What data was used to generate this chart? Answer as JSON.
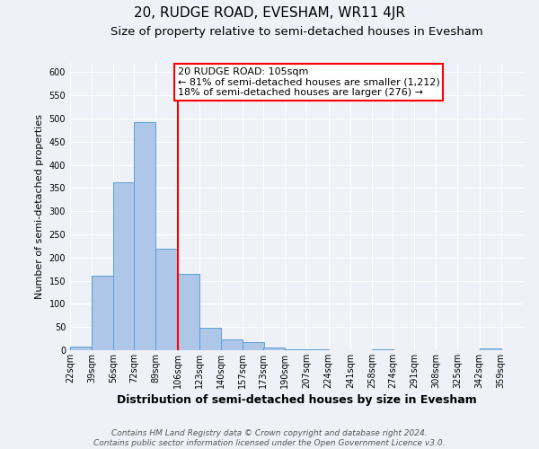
{
  "title": "20, RUDGE ROAD, EVESHAM, WR11 4JR",
  "subtitle": "Size of property relative to semi-detached houses in Evesham",
  "xlabel": "Distribution of semi-detached houses by size in Evesham",
  "ylabel": "Number of semi-detached properties",
  "bin_labels": [
    "22sqm",
    "39sqm",
    "56sqm",
    "72sqm",
    "89sqm",
    "106sqm",
    "123sqm",
    "140sqm",
    "157sqm",
    "173sqm",
    "190sqm",
    "207sqm",
    "224sqm",
    "241sqm",
    "258sqm",
    "274sqm",
    "291sqm",
    "308sqm",
    "325sqm",
    "342sqm",
    "359sqm"
  ],
  "bin_edges": [
    22,
    39,
    56,
    72,
    89,
    106,
    123,
    140,
    157,
    173,
    190,
    207,
    224,
    241,
    258,
    274,
    291,
    308,
    325,
    342,
    359
  ],
  "bar_heights": [
    8,
    161,
    362,
    492,
    218,
    164,
    49,
    24,
    18,
    6,
    2,
    1,
    0,
    0,
    2,
    0,
    0,
    0,
    0,
    3
  ],
  "bar_color": "#aec6e8",
  "bar_edgecolor": "#5a9fd4",
  "vline_x": 106,
  "vline_color": "red",
  "annotation_title": "20 RUDGE ROAD: 105sqm",
  "annotation_line1": "← 81% of semi-detached houses are smaller (1,212)",
  "annotation_line2": "18% of semi-detached houses are larger (276) →",
  "ylim": [
    0,
    620
  ],
  "yticks": [
    0,
    50,
    100,
    150,
    200,
    250,
    300,
    350,
    400,
    450,
    500,
    550,
    600
  ],
  "footer_line1": "Contains HM Land Registry data © Crown copyright and database right 2024.",
  "footer_line2": "Contains public sector information licensed under the Open Government Licence v3.0.",
  "background_color": "#eef2f8",
  "grid_color": "#ffffff",
  "title_fontsize": 11,
  "subtitle_fontsize": 9.5,
  "xlabel_fontsize": 9,
  "ylabel_fontsize": 8,
  "tick_fontsize": 7,
  "annotation_fontsize": 8,
  "footer_fontsize": 6.5
}
